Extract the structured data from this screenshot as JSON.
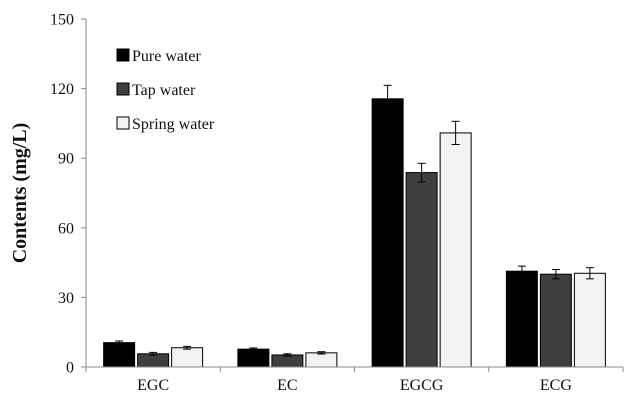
{
  "chart_data": {
    "type": "bar",
    "title": "",
    "xlabel": "",
    "ylabel": "Contents (mg/L)",
    "ylim": [
      0,
      150
    ],
    "yticks": [
      0,
      30,
      60,
      90,
      120,
      150
    ],
    "grid": false,
    "legend_placement": "top-left",
    "categories": [
      "EGC",
      "EC",
      "EGCG",
      "ECG"
    ],
    "series": [
      {
        "name": "Pure water",
        "color": "#000000",
        "values": [
          10.5,
          7.7,
          115.6,
          41.3
        ],
        "errors": [
          0.7,
          0.5,
          5.8,
          2.2
        ]
      },
      {
        "name": "Tap water",
        "color": "#3f3f3f",
        "values": [
          5.7,
          5.2,
          83.8,
          40.0
        ],
        "errors": [
          0.6,
          0.5,
          4.0,
          2.0
        ]
      },
      {
        "name": "Spring water",
        "color": "#f2f2f2",
        "values": [
          8.3,
          6.1,
          100.9,
          40.4
        ],
        "errors": [
          0.6,
          0.5,
          5.0,
          2.4
        ]
      }
    ]
  }
}
